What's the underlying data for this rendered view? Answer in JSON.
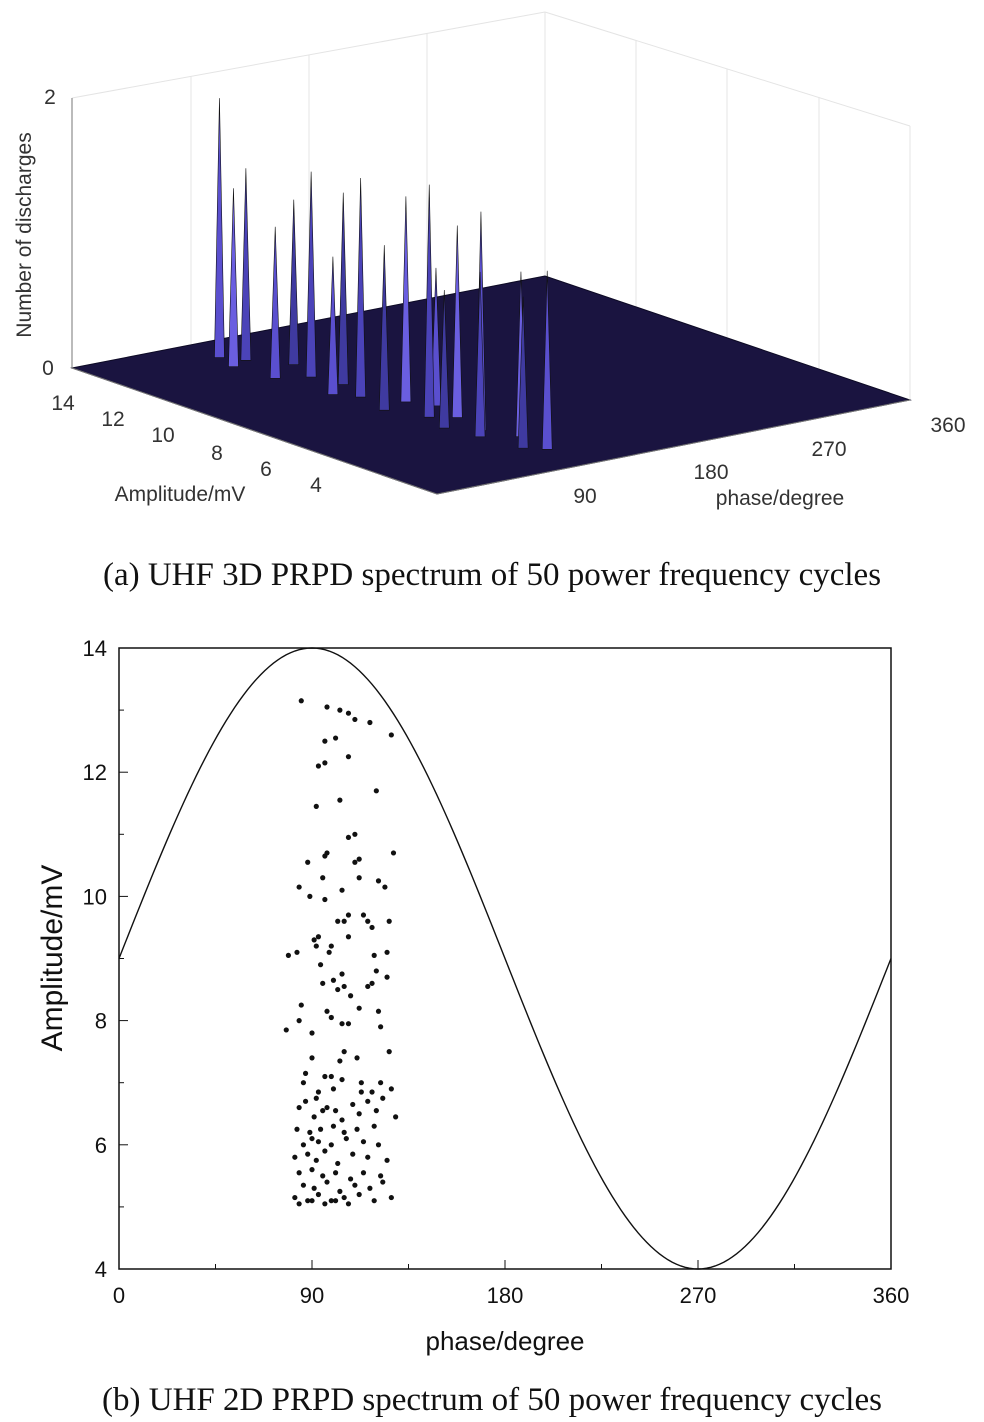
{
  "chart_data": [
    {
      "type": "surface-3d",
      "caption": "(a) UHF 3D PRPD spectrum of 50 power frequency cycles",
      "zlabel": "Number of discharges",
      "ylabel": "Amplitude/mV",
      "xlabel": "phase/degree",
      "z_ticks": [
        "0",
        "2"
      ],
      "y_ticks": [
        "14",
        "12",
        "10",
        "8",
        "6",
        "4"
      ],
      "x_ticks": [
        "90",
        "180",
        "270",
        "360"
      ],
      "xlim": [
        0,
        360
      ],
      "ylim": [
        4,
        14
      ],
      "zlim": [
        0,
        2
      ],
      "peaks": [
        {
          "phase": 84,
          "amp": 12.6,
          "n": 1.3
        },
        {
          "phase": 88,
          "amp": 11.6,
          "n": 1.1
        },
        {
          "phase": 90,
          "amp": 13.2,
          "n": 1.9
        },
        {
          "phase": 93,
          "amp": 10.2,
          "n": 1.0
        },
        {
          "phase": 96,
          "amp": 8.9,
          "n": 1.2
        },
        {
          "phase": 99,
          "amp": 12.8,
          "n": 1.4
        },
        {
          "phase": 100,
          "amp": 7.4,
          "n": 1.0
        },
        {
          "phase": 103,
          "amp": 9.8,
          "n": 1.6
        },
        {
          "phase": 105,
          "amp": 6.6,
          "n": 1.2
        },
        {
          "phase": 107,
          "amp": 11.3,
          "n": 1.5
        },
        {
          "phase": 108,
          "amp": 8.1,
          "n": 1.7
        },
        {
          "phase": 110,
          "amp": 5.6,
          "n": 1.1
        },
        {
          "phase": 112,
          "amp": 10.6,
          "n": 1.4
        },
        {
          "phase": 114,
          "amp": 6.9,
          "n": 1.6
        },
        {
          "phase": 116,
          "amp": 12.1,
          "n": 1.2
        },
        {
          "phase": 118,
          "amp": 9.1,
          "n": 1.5
        },
        {
          "phase": 120,
          "amp": 5.3,
          "n": 1.3
        },
        {
          "phase": 121,
          "amp": 7.8,
          "n": 1.4
        },
        {
          "phase": 123,
          "amp": 11.0,
          "n": 1.1
        },
        {
          "phase": 125,
          "amp": 6.2,
          "n": 1.2
        },
        {
          "phase": 127,
          "amp": 8.6,
          "n": 1.0
        }
      ]
    },
    {
      "type": "scatter",
      "caption": "(b) UHF 2D PRPD spectrum of 50 power frequency cycles",
      "xlabel": "phase/degree",
      "ylabel": "Amplitude/mV",
      "xlim": [
        0,
        360
      ],
      "ylim": [
        4,
        14
      ],
      "x_ticks": [
        0,
        90,
        180,
        270,
        360
      ],
      "y_ticks": [
        4,
        6,
        8,
        10,
        12,
        14
      ],
      "reference_curve": {
        "type": "sine",
        "center": 9,
        "amplitude": 5,
        "period_deg": 360
      },
      "points": [
        [
          85,
          13.15
        ],
        [
          97,
          13.05
        ],
        [
          103,
          13.0
        ],
        [
          107,
          12.95
        ],
        [
          110,
          12.85
        ],
        [
          117,
          12.8
        ],
        [
          127,
          12.6
        ],
        [
          96,
          12.5
        ],
        [
          101,
          12.55
        ],
        [
          107,
          12.25
        ],
        [
          93,
          12.1
        ],
        [
          96,
          12.15
        ],
        [
          120,
          11.7
        ],
        [
          103,
          11.55
        ],
        [
          92,
          11.45
        ],
        [
          110,
          11.0
        ],
        [
          107,
          10.95
        ],
        [
          97,
          10.7
        ],
        [
          88,
          10.55
        ],
        [
          110,
          10.55
        ],
        [
          128,
          10.7
        ],
        [
          96,
          10.65
        ],
        [
          112,
          10.6
        ],
        [
          84,
          10.15
        ],
        [
          89,
          10.0
        ],
        [
          95,
          10.3
        ],
        [
          104,
          10.1
        ],
        [
          112,
          10.3
        ],
        [
          124,
          10.15
        ],
        [
          121,
          10.25
        ],
        [
          96,
          9.95
        ],
        [
          105,
          9.6
        ],
        [
          102,
          9.6
        ],
        [
          107,
          9.7
        ],
        [
          116,
          9.6
        ],
        [
          126,
          9.6
        ],
        [
          114,
          9.7
        ],
        [
          91,
          9.3
        ],
        [
          92,
          9.2
        ],
        [
          93,
          9.35
        ],
        [
          99,
          9.2
        ],
        [
          107,
          9.35
        ],
        [
          118,
          9.5
        ],
        [
          79,
          9.05
        ],
        [
          83,
          9.1
        ],
        [
          98,
          9.1
        ],
        [
          119,
          9.05
        ],
        [
          125,
          9.1
        ],
        [
          94,
          8.9
        ],
        [
          100,
          8.65
        ],
        [
          104,
          8.75
        ],
        [
          120,
          8.8
        ],
        [
          118,
          8.6
        ],
        [
          125,
          8.7
        ],
        [
          95,
          8.6
        ],
        [
          102,
          8.5
        ],
        [
          105,
          8.55
        ],
        [
          108,
          8.4
        ],
        [
          116,
          8.55
        ],
        [
          85,
          8.25
        ],
        [
          97,
          8.15
        ],
        [
          112,
          8.2
        ],
        [
          121,
          8.15
        ],
        [
          84,
          8.0
        ],
        [
          99,
          8.05
        ],
        [
          104,
          7.95
        ],
        [
          107,
          7.95
        ],
        [
          122,
          7.9
        ],
        [
          78,
          7.85
        ],
        [
          90,
          7.8
        ],
        [
          105,
          7.5
        ],
        [
          90,
          7.4
        ],
        [
          103,
          7.35
        ],
        [
          111,
          7.4
        ],
        [
          126,
          7.5
        ],
        [
          87,
          7.15
        ],
        [
          86,
          7.0
        ],
        [
          96,
          7.1
        ],
        [
          99,
          7.1
        ],
        [
          104,
          7.05
        ],
        [
          113,
          7.0
        ],
        [
          122,
          7.0
        ],
        [
          93,
          6.85
        ],
        [
          100,
          6.9
        ],
        [
          113,
          6.85
        ],
        [
          118,
          6.85
        ],
        [
          127,
          6.9
        ],
        [
          87,
          6.7
        ],
        [
          92,
          6.75
        ],
        [
          97,
          6.6
        ],
        [
          101,
          6.55
        ],
        [
          109,
          6.65
        ],
        [
          116,
          6.7
        ],
        [
          123,
          6.75
        ],
        [
          84,
          6.6
        ],
        [
          91,
          6.45
        ],
        [
          95,
          6.55
        ],
        [
          104,
          6.4
        ],
        [
          112,
          6.5
        ],
        [
          120,
          6.55
        ],
        [
          129,
          6.45
        ],
        [
          83,
          6.25
        ],
        [
          89,
          6.2
        ],
        [
          94,
          6.25
        ],
        [
          100,
          6.3
        ],
        [
          105,
          6.2
        ],
        [
          111,
          6.25
        ],
        [
          119,
          6.3
        ],
        [
          86,
          6.0
        ],
        [
          90,
          6.1
        ],
        [
          93,
          6.05
        ],
        [
          99,
          6.0
        ],
        [
          106,
          6.1
        ],
        [
          114,
          6.05
        ],
        [
          121,
          6.0
        ],
        [
          82,
          5.8
        ],
        [
          88,
          5.85
        ],
        [
          92,
          5.75
        ],
        [
          96,
          5.9
        ],
        [
          102,
          5.7
        ],
        [
          109,
          5.85
        ],
        [
          116,
          5.8
        ],
        [
          125,
          5.75
        ],
        [
          84,
          5.55
        ],
        [
          90,
          5.6
        ],
        [
          95,
          5.5
        ],
        [
          101,
          5.55
        ],
        [
          108,
          5.45
        ],
        [
          114,
          5.55
        ],
        [
          122,
          5.5
        ],
        [
          86,
          5.35
        ],
        [
          91,
          5.3
        ],
        [
          97,
          5.4
        ],
        [
          103,
          5.25
        ],
        [
          110,
          5.35
        ],
        [
          117,
          5.3
        ],
        [
          123,
          5.4
        ],
        [
          82,
          5.15
        ],
        [
          88,
          5.1
        ],
        [
          93,
          5.2
        ],
        [
          99,
          5.1
        ],
        [
          105,
          5.15
        ],
        [
          112,
          5.2
        ],
        [
          119,
          5.1
        ],
        [
          127,
          5.15
        ],
        [
          84,
          5.05
        ],
        [
          90,
          5.1
        ],
        [
          96,
          5.05
        ],
        [
          101,
          5.1
        ],
        [
          107,
          5.05
        ]
      ]
    }
  ]
}
